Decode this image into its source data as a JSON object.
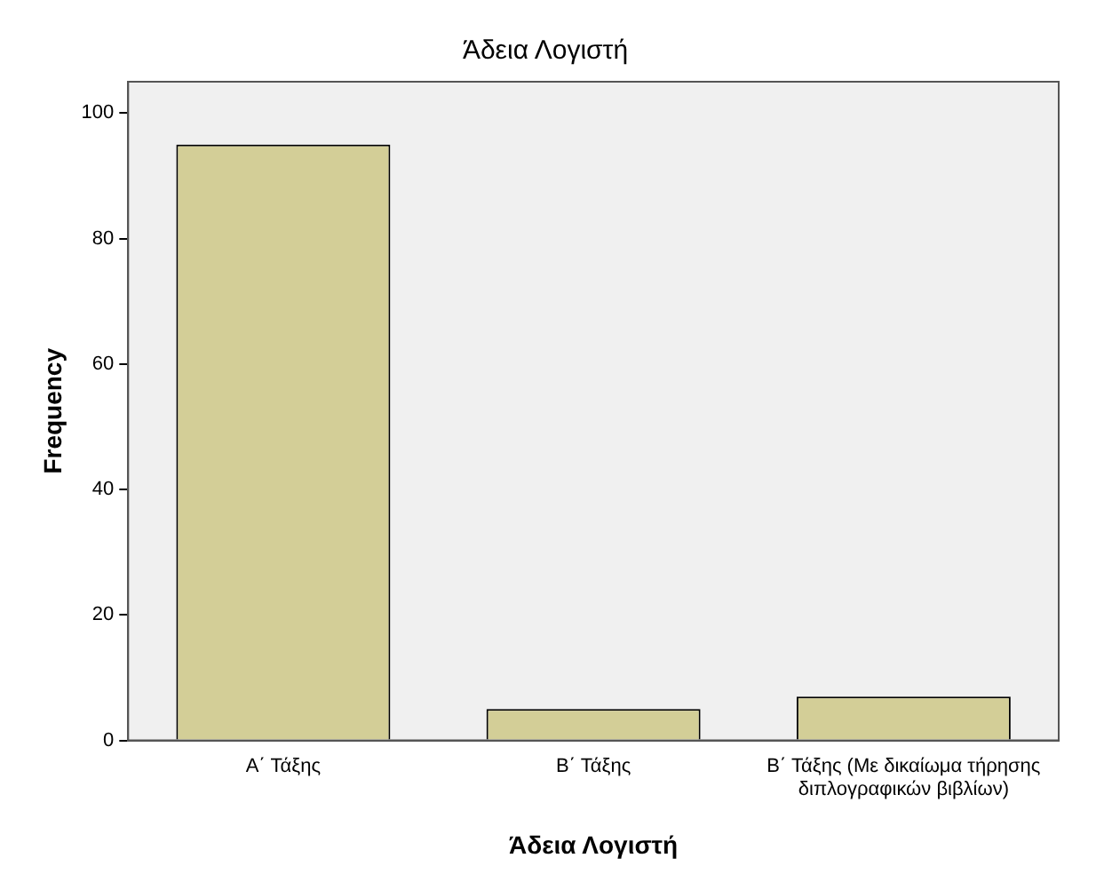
{
  "chart_data": {
    "type": "bar",
    "title": "Άδεια Λογιστή",
    "xlabel": "Άδεια Λογιστή",
    "ylabel": "Frequency",
    "categories": [
      "Α΄ Τάξης",
      "Β΄ Τάξης",
      "Β΄ Τάξης (Με δικαίωμα τήρησης διπλογραφικών βιβλίων)"
    ],
    "values": [
      95,
      5,
      7
    ],
    "color": "#d3ce97",
    "ylim": [
      0,
      105
    ],
    "yticks": [
      0,
      20,
      40,
      60,
      80,
      100
    ],
    "grid": false,
    "legend": false
  }
}
